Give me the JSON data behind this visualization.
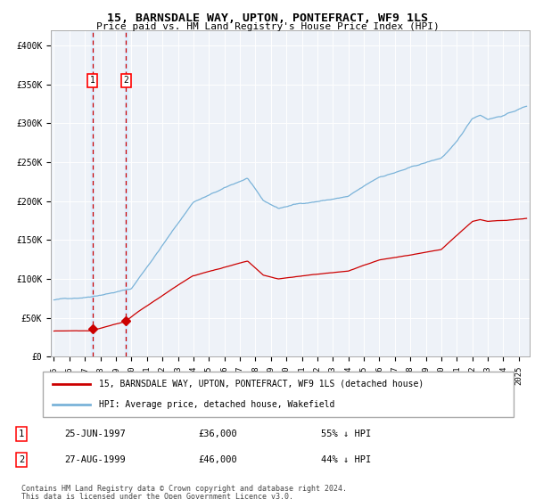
{
  "title": "15, BARNSDALE WAY, UPTON, PONTEFRACT, WF9 1LS",
  "subtitle": "Price paid vs. HM Land Registry's House Price Index (HPI)",
  "legend_line1": "15, BARNSDALE WAY, UPTON, PONTEFRACT, WF9 1LS (detached house)",
  "legend_line2": "HPI: Average price, detached house, Wakefield",
  "transaction1_date": "25-JUN-1997",
  "transaction1_price": "£36,000",
  "transaction1_hpi": "55% ↓ HPI",
  "transaction1_label": "1",
  "transaction2_date": "27-AUG-1999",
  "transaction2_price": "£46,000",
  "transaction2_hpi": "44% ↓ HPI",
  "transaction2_label": "2",
  "footnote1": "Contains HM Land Registry data © Crown copyright and database right 2024.",
  "footnote2": "This data is licensed under the Open Government Licence v3.0.",
  "hpi_color": "#7ab3d9",
  "price_color": "#cc0000",
  "marker_color": "#cc0000",
  "vline_color": "#cc0000",
  "shade_color": "#ddeeff",
  "background_color": "#eef2f8",
  "grid_color": "#ffffff",
  "ylim": [
    0,
    420000
  ],
  "xlim_start": 1994.8,
  "xlim_end": 2025.7,
  "t1_year": 1997.48,
  "t2_year": 1999.65,
  "t1_price": 36000,
  "t2_price": 46000
}
